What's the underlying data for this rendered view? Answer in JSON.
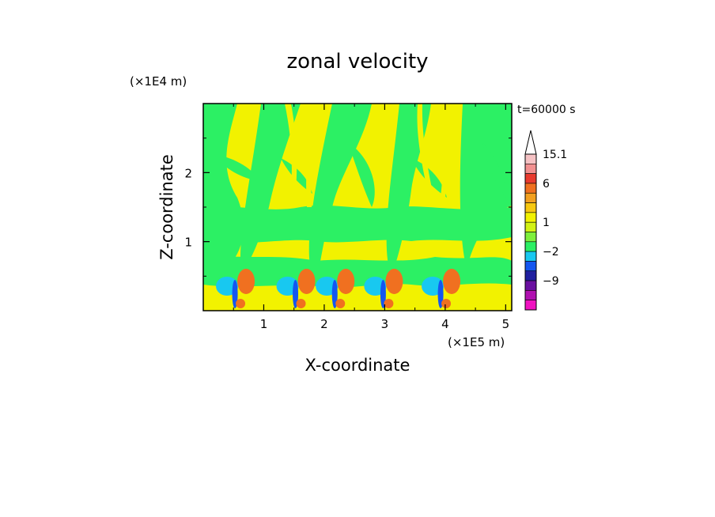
{
  "chart_data": {
    "type": "heatmap",
    "title": "zonal velocity",
    "xlabel": "X-coordinate",
    "ylabel": "Z-coordinate",
    "x_scale_label": "(×1E5 m)",
    "y_scale_label": "(×1E4 m)",
    "time_label": "t=60000 s",
    "x_ticks": [
      "1",
      "2",
      "3",
      "4",
      "5"
    ],
    "y_ticks": [
      "1",
      "2"
    ],
    "xlim": [
      0,
      5.1
    ],
    "ylim": [
      0,
      3
    ],
    "colorbar": {
      "labels": [
        "15.1",
        "6",
        "1",
        "-2",
        "-9"
      ],
      "levels": [
        15.1,
        12,
        9,
        6,
        4,
        3,
        2,
        1,
        0,
        -1,
        -2,
        -4,
        -6,
        -9,
        -12,
        -15
      ],
      "colors": [
        "#f5c2c4",
        "#f29090",
        "#e83a2e",
        "#f07020",
        "#f2a020",
        "#f7c810",
        "#f2f200",
        "#d2f214",
        "#7ef03c",
        "#2cf064",
        "#18c8f0",
        "#1456f0",
        "#2020a0",
        "#6a10a0",
        "#b010b0",
        "#f012c0"
      ],
      "extend": "max"
    },
    "field_colors": {
      "background_positive_small": "#f2f200",
      "background_negative_small": "#2cf064",
      "strong_positive": "#f07020",
      "strong_negative": "#1456f0",
      "moderate_negative": "#18c8f0"
    }
  }
}
